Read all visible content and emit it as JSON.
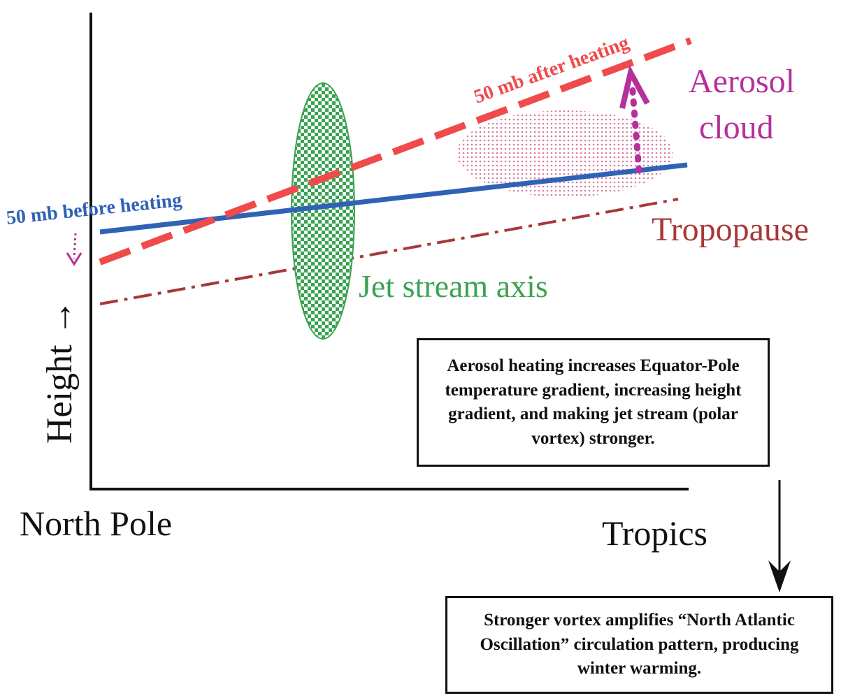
{
  "labels": {
    "before": "50 mb before heating",
    "after": "50 mb after heating",
    "aerosol_line1": "Aerosol",
    "aerosol_line2": "cloud",
    "tropopause": "Tropopause",
    "jet": "Jet stream axis",
    "height_axis": "Height →",
    "north_pole": "North Pole",
    "tropics": "Tropics"
  },
  "boxes": {
    "box1": "Aerosol heating increases Equator-Pole temperature gradient, increasing height gradient, and making jet stream (polar vortex) stronger.",
    "box2": "Stronger vortex amplifies “North Atlantic Oscillation” circulation pattern, producing winter warming."
  },
  "colors": {
    "before_line": "#2f62b5",
    "after_line": "#f04a4a",
    "tropopause": "#a83838",
    "jet": "#3aa352",
    "aerosol": "#b5309a",
    "axis": "#111111"
  }
}
